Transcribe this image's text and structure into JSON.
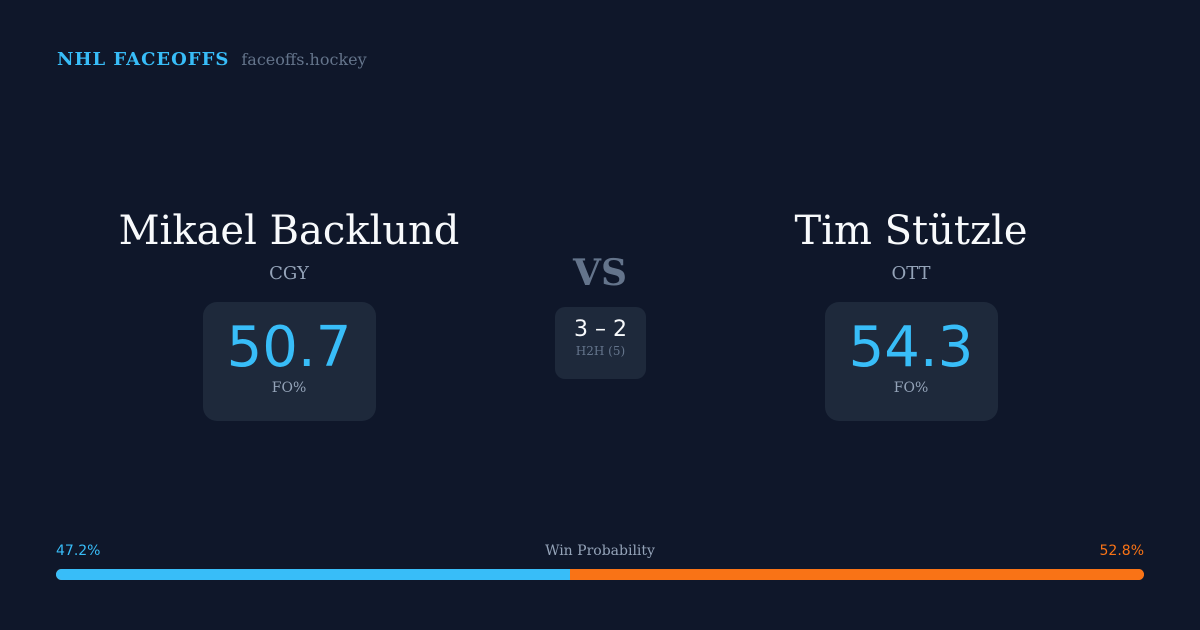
{
  "brand": {
    "name": "NHL FACEOFFS",
    "site": "faceoffs.hockey"
  },
  "player1": {
    "name": "Mikael Backlund",
    "team": "CGY",
    "fo_pct": "50.7",
    "fo_label": "FO%"
  },
  "player2": {
    "name": "Tim Stützle",
    "team": "OTT",
    "fo_pct": "54.3",
    "fo_label": "FO%"
  },
  "vs": "VS",
  "h2h": {
    "score": "3 – 2",
    "label": "H2H (5)"
  },
  "win_probability": {
    "label": "Win Probability",
    "left": "47.2%",
    "right": "52.8%",
    "left_value": 47.2,
    "right_value": 52.8,
    "colors": {
      "left": "#38bdf8",
      "right": "#f97316"
    }
  }
}
